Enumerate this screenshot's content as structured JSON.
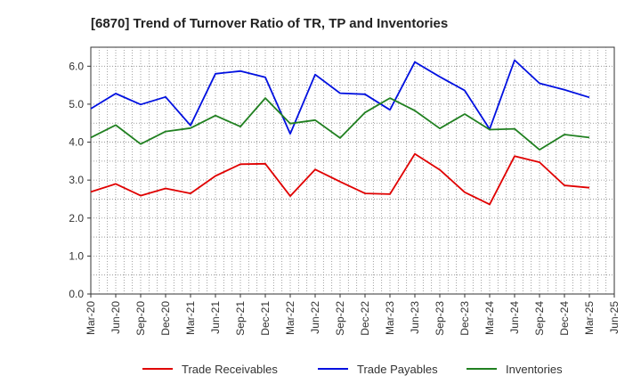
{
  "chart_data": {
    "type": "line",
    "title": "[6870]  Trend of Turnover Ratio of TR, TP and Inventories",
    "xlabel": "",
    "ylabel": "",
    "ylim": [
      0,
      6.5
    ],
    "yticks": [
      "0.0",
      "1.0",
      "2.0",
      "3.0",
      "4.0",
      "5.0",
      "6.0"
    ],
    "categories": [
      "Mar-20",
      "Jun-20",
      "Sep-20",
      "Dec-20",
      "Mar-21",
      "Jun-21",
      "Sep-21",
      "Dec-21",
      "Mar-22",
      "Jun-22",
      "Sep-22",
      "Dec-22",
      "Mar-23",
      "Jun-23",
      "Sep-23",
      "Dec-23",
      "Mar-24",
      "Jun-24",
      "Sep-24",
      "Dec-24",
      "Mar-25",
      "Jun-25"
    ],
    "grid": true,
    "legend_position": "bottom",
    "series": [
      {
        "name": "Trade Receivables",
        "color": "#e00000",
        "values": [
          2.69,
          2.9,
          2.59,
          2.78,
          2.65,
          3.11,
          3.42,
          3.43,
          2.58,
          3.28,
          2.96,
          2.65,
          2.63,
          3.69,
          3.27,
          2.68,
          2.36,
          3.63,
          3.47,
          2.86,
          2.8,
          null
        ]
      },
      {
        "name": "Trade Payables",
        "color": "#0010e0",
        "values": [
          4.88,
          5.28,
          4.99,
          5.19,
          4.44,
          5.8,
          5.87,
          5.71,
          4.22,
          5.78,
          5.29,
          5.26,
          4.85,
          6.11,
          5.72,
          5.36,
          4.34,
          6.16,
          5.55,
          5.38,
          5.18,
          null
        ]
      },
      {
        "name": "Inventories",
        "color": "#208020",
        "values": [
          4.12,
          4.45,
          3.95,
          4.28,
          4.37,
          4.7,
          4.41,
          5.16,
          4.49,
          4.58,
          4.11,
          4.78,
          5.16,
          4.83,
          4.36,
          4.74,
          4.33,
          4.35,
          3.8,
          4.2,
          4.12,
          null
        ]
      }
    ]
  }
}
